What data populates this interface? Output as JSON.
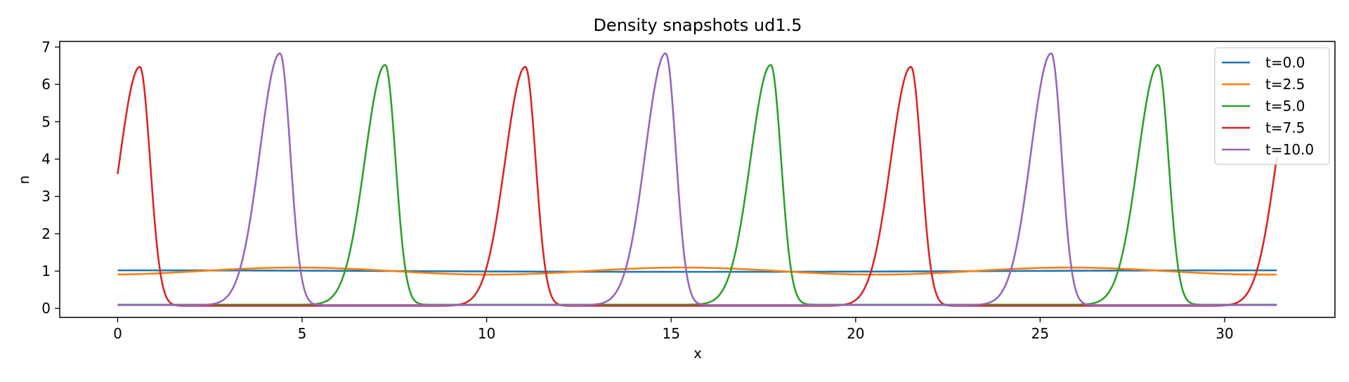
{
  "chart_data": {
    "type": "line",
    "title": "Density snapshots  ud1.5",
    "xlabel": "x",
    "ylabel": "n",
    "xlim": [
      -1.57,
      32.99
    ],
    "ylim": [
      -0.24,
      7.15
    ],
    "xticks": [
      0,
      5,
      10,
      15,
      20,
      25,
      30
    ],
    "yticks": [
      0,
      1,
      2,
      3,
      4,
      5,
      6,
      7
    ],
    "grid": false,
    "legend_position": "upper right",
    "x_domain": [
      0,
      31.4159
    ],
    "series": [
      {
        "name": "t=0.0",
        "color": "#1f77b4",
        "kind": "cosine",
        "mean": 1.0,
        "amplitude": 0.02,
        "wavelength": 31.4159,
        "phase": 0
      },
      {
        "name": "t=2.5",
        "color": "#ff7f0e",
        "kind": "cosine",
        "mean": 1.0,
        "amplitude": 0.095,
        "wavelength": 10.472,
        "phase": 2.91
      },
      {
        "name": "t=5.0",
        "color": "#2ca02c",
        "kind": "soliton",
        "base": 0.1,
        "peak": 6.52,
        "peak_positions": [
          7.25,
          17.7,
          28.2
        ],
        "rise_width": 0.55,
        "fall_width": 0.28
      },
      {
        "name": "t=7.5",
        "color": "#d62728",
        "kind": "soliton",
        "base": 0.07,
        "peak": 6.47,
        "peak_positions": [
          0.6,
          11.05,
          21.5,
          31.95
        ],
        "rise_width": 0.55,
        "fall_width": 0.28
      },
      {
        "name": "t=10.0",
        "color": "#9467bd",
        "kind": "soliton",
        "base": 0.09,
        "peak": 6.83,
        "peak_positions": [
          4.4,
          14.85,
          25.3
        ],
        "rise_width": 0.55,
        "fall_width": 0.28
      }
    ]
  }
}
